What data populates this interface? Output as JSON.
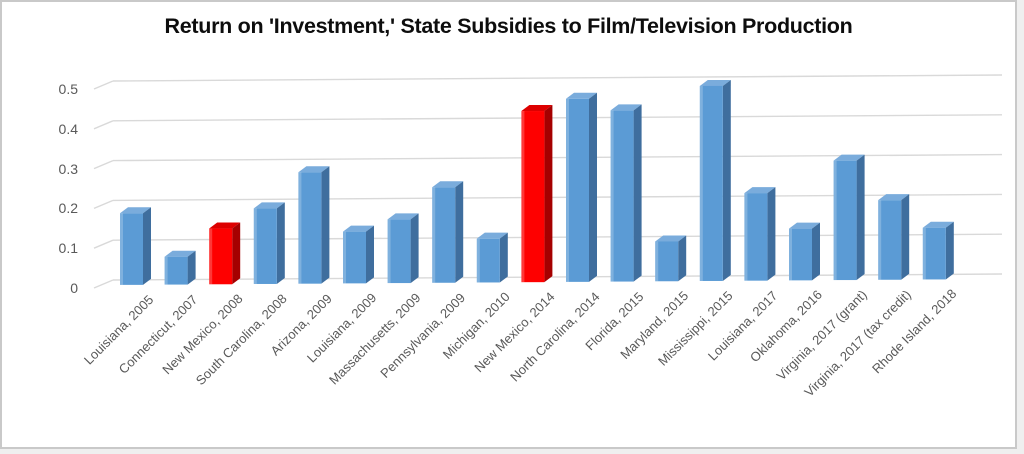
{
  "chart_data": {
    "type": "bar",
    "style": "3d-column",
    "title": "Return on 'Investment,' State Subsidies to Film/Television Production",
    "categories": [
      "Louisiana, 2005",
      "Connecticut, 2007",
      "New Mexico, 2008",
      "South Carolina, 2008",
      "Arizona, 2009",
      "Louisiana, 2009",
      "Massachusetts, 2009",
      "Pennsylvania, 2009",
      "Michigan, 2010",
      "New Mexico, 2014",
      "North Carolina, 2014",
      "Florida, 2015",
      "Maryland, 2015",
      "Mississippi, 2015",
      "Louisiana, 2017",
      "Oklahoma, 2016",
      "Virginia, 2017 (grant)",
      "Virginia, 2017 (tax credit)",
      "Rhode Island, 2018"
    ],
    "values": [
      0.18,
      0.07,
      0.14,
      0.19,
      0.28,
      0.13,
      0.16,
      0.24,
      0.11,
      0.43,
      0.46,
      0.43,
      0.1,
      0.49,
      0.22,
      0.13,
      0.3,
      0.2,
      0.13
    ],
    "highlighted_indices": [
      2,
      9
    ],
    "y_ticks": [
      "0",
      "0.1",
      "0.2",
      "0.3",
      "0.4",
      "0.5"
    ],
    "ylim": [
      0,
      0.5
    ],
    "xlabel": "",
    "ylabel": "",
    "grid": true,
    "legend": false,
    "colors": {
      "bar": "#5B9BD5",
      "bar_top": "#7AACDC",
      "bar_side": "#3F6E9E",
      "highlight": "#FE0000",
      "highlight_top": "#DD0000",
      "highlight_side": "#A50000",
      "gridline": "#D9D9D9",
      "axis_text": "#595959",
      "title_text": "#0D0D0D",
      "frame": "#C9C9C9",
      "background": "#FFFFFF"
    }
  }
}
